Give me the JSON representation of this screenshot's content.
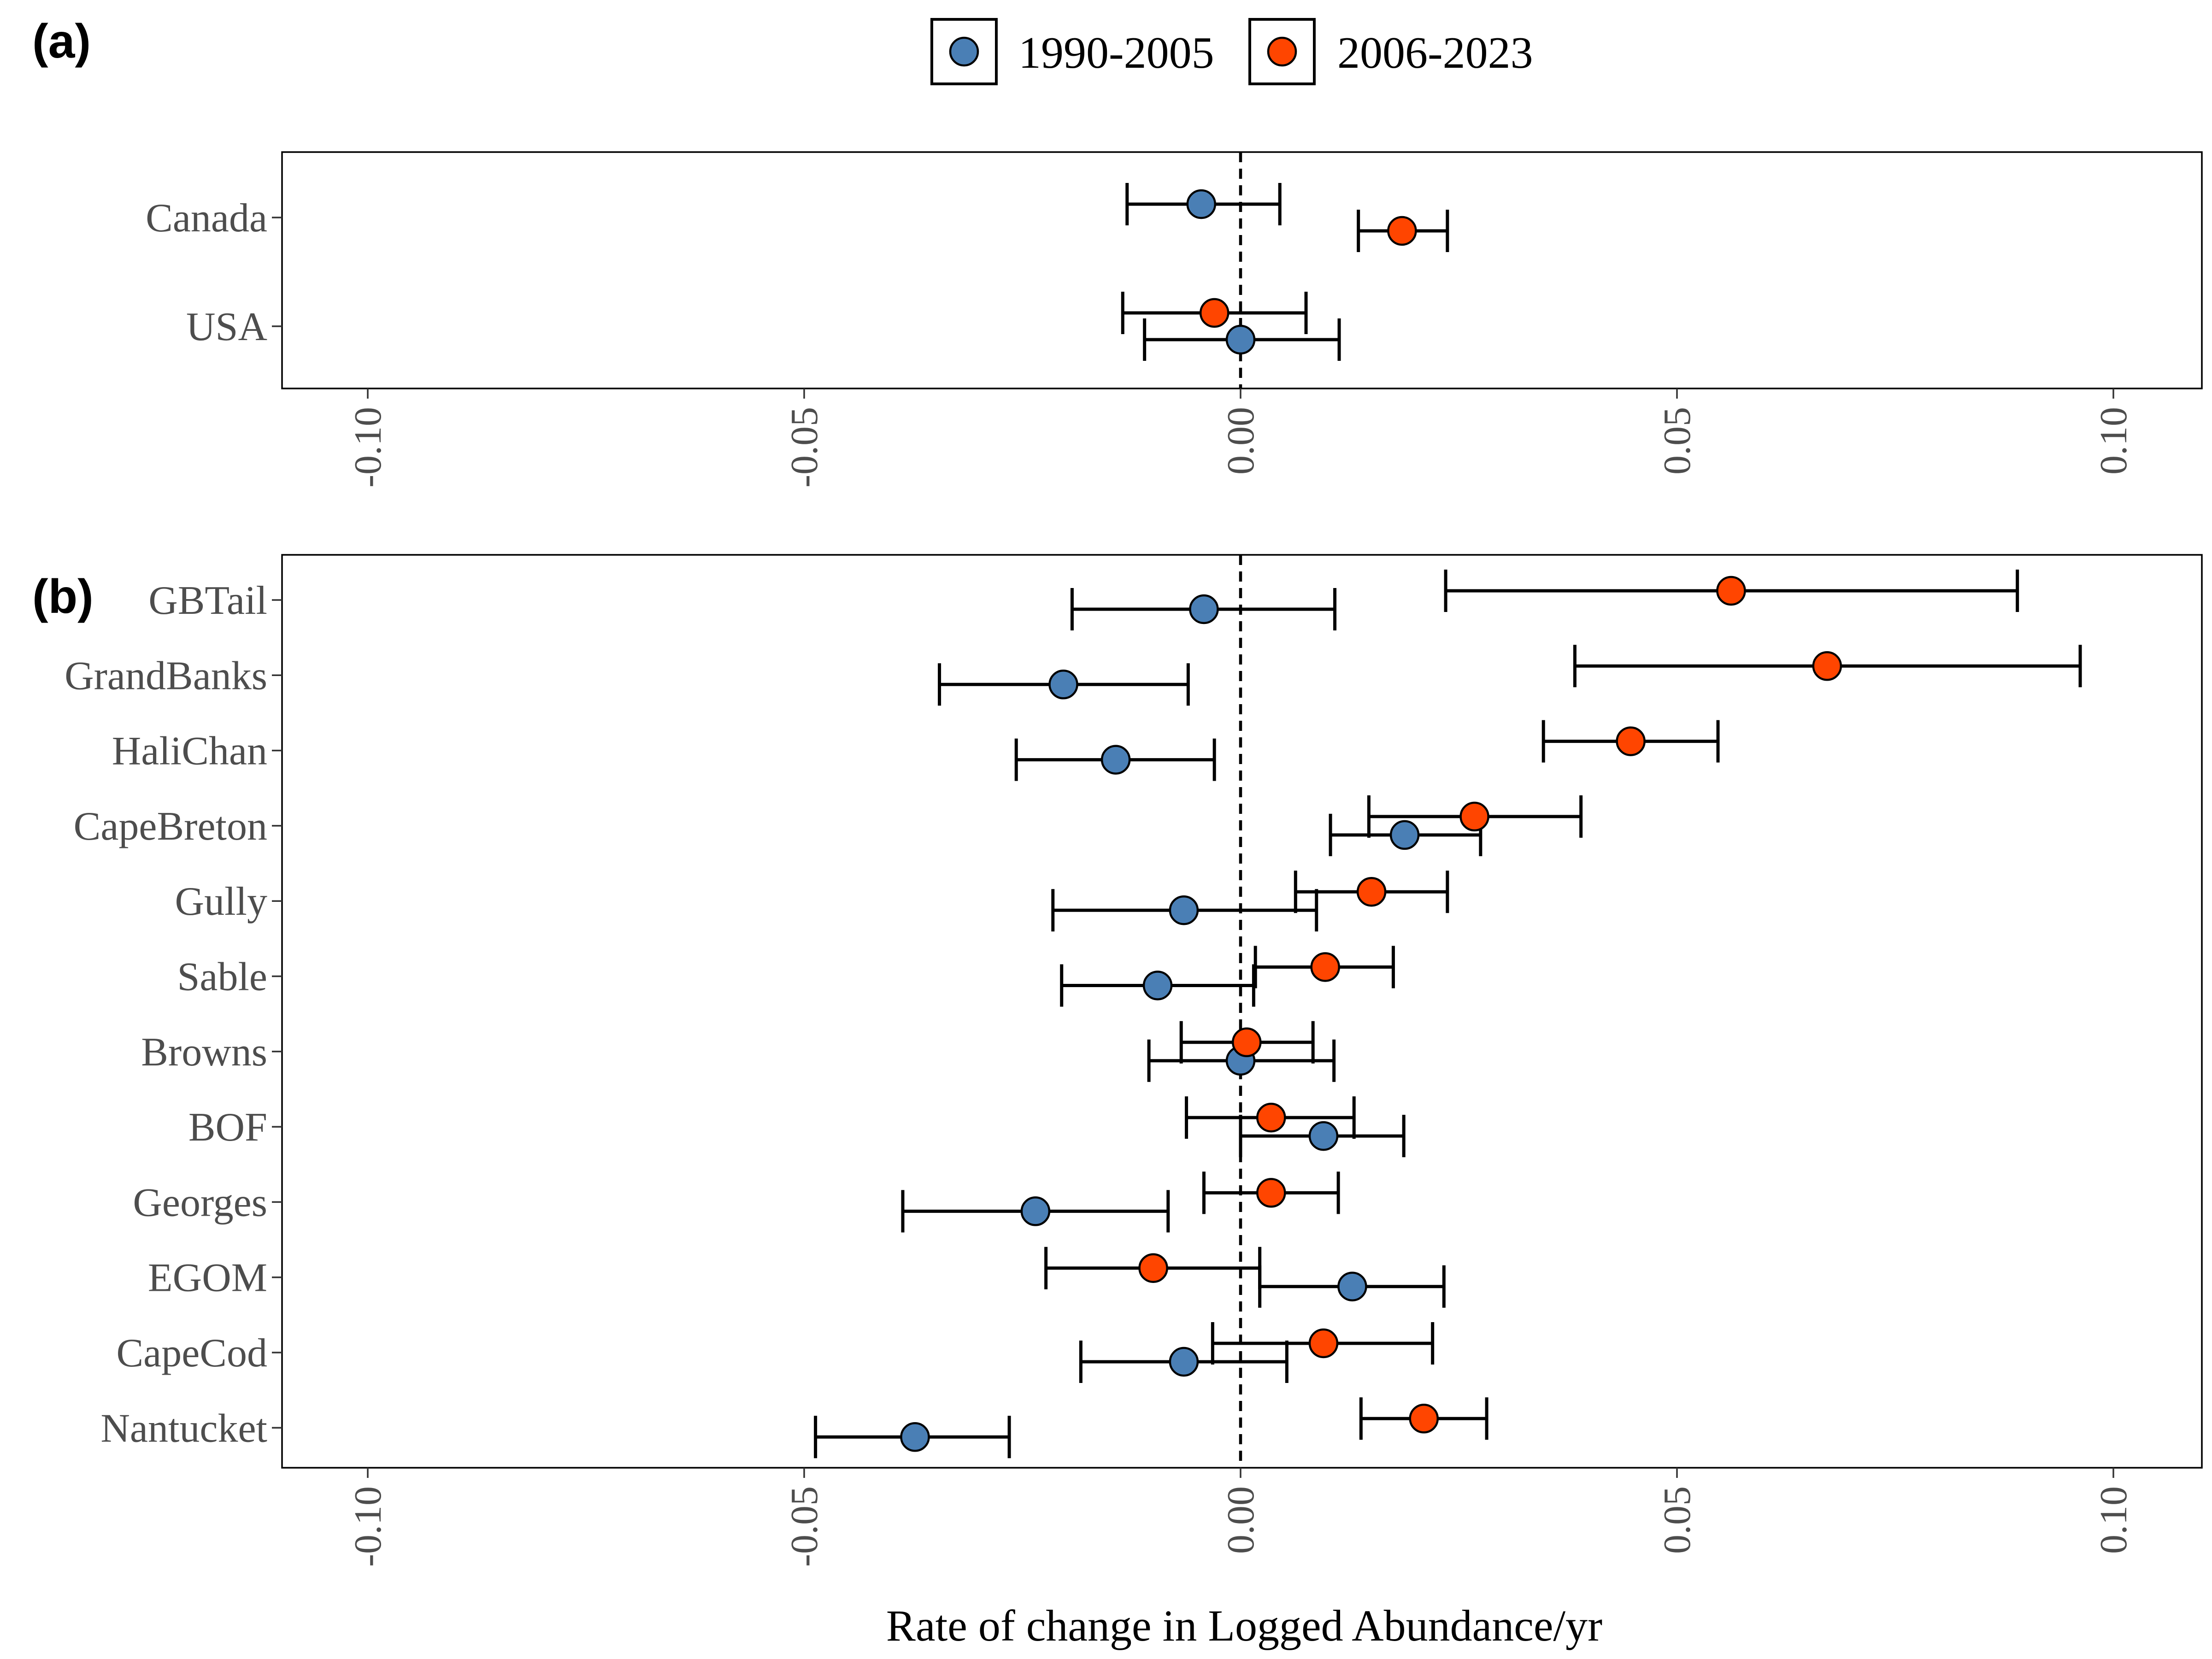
{
  "colors": {
    "period1": "#4a7fb5",
    "period2": "#ff4500"
  },
  "legend": {
    "items": [
      {
        "label": "1990-2005",
        "color": "#4a7fb5"
      },
      {
        "label": "2006-2023",
        "color": "#ff4500"
      }
    ]
  },
  "x_axis": {
    "label": "Rate of change in Logged Abundance/yr",
    "ticks": [
      "-0.10",
      "-0.05",
      "0.00",
      "0.05",
      "0.10"
    ]
  },
  "chart_data": [
    {
      "type": "scatter",
      "panel_label": "(a)",
      "categories": [
        "Canada",
        "USA"
      ],
      "xlim": [
        -0.11,
        0.11
      ],
      "reference_line_x": 0.0,
      "series": [
        {
          "name": "1990-2005",
          "color": "#4a7fb5",
          "estimates": [
            -0.0045,
            0.0
          ],
          "lower": [
            -0.013,
            -0.011
          ],
          "upper": [
            0.0045,
            0.0113
          ]
        },
        {
          "name": "2006-2023",
          "color": "#ff4500",
          "estimates": [
            0.0185,
            -0.003
          ],
          "lower": [
            0.0135,
            -0.0135
          ],
          "upper": [
            0.0237,
            0.0075
          ]
        }
      ]
    },
    {
      "type": "scatter",
      "panel_label": "(b)",
      "categories": [
        "GBTail",
        "GrandBanks",
        "HaliChan",
        "CapeBreton",
        "Gully",
        "Sable",
        "Browns",
        "BOF",
        "Georges",
        "EGOM",
        "CapeCod",
        "Nantucket"
      ],
      "xlim": [
        -0.11,
        0.11
      ],
      "reference_line_x": 0.0,
      "series": [
        {
          "name": "1990-2005",
          "color": "#4a7fb5",
          "estimates": [
            -0.0042,
            -0.0203,
            -0.0143,
            0.0188,
            -0.0065,
            -0.0095,
            0.0,
            0.0095,
            -0.0235,
            0.0128,
            -0.0065,
            -0.0373
          ],
          "lower": [
            -0.0193,
            -0.0345,
            -0.0257,
            0.0103,
            -0.0215,
            -0.0205,
            -0.0105,
            0.0,
            -0.0387,
            0.0022,
            -0.0183,
            -0.0487
          ],
          "upper": [
            0.0108,
            -0.006,
            -0.003,
            0.0275,
            0.0087,
            0.0015,
            0.0107,
            0.0187,
            -0.0083,
            0.0233,
            0.0053,
            -0.0265
          ]
        },
        {
          "name": "2006-2023",
          "color": "#ff4500",
          "estimates": [
            0.0562,
            0.0672,
            0.0447,
            0.0268,
            0.015,
            0.0097,
            0.0007,
            0.0035,
            0.0035,
            -0.01,
            0.0095,
            0.021
          ],
          "lower": [
            0.0235,
            0.0383,
            0.0347,
            0.0147,
            0.0063,
            0.0017,
            -0.0068,
            -0.0062,
            -0.0042,
            -0.0223,
            -0.0032,
            0.0138
          ],
          "upper": [
            0.089,
            0.0962,
            0.0547,
            0.039,
            0.0237,
            0.0175,
            0.0083,
            0.013,
            0.0112,
            0.0022,
            0.022,
            0.0282
          ]
        }
      ]
    }
  ]
}
